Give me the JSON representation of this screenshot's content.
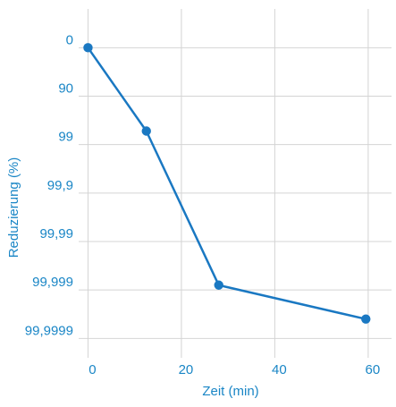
{
  "chart_data": {
    "type": "line",
    "xlabel": "Zeit (min)",
    "ylabel": "Reduzierung (%)",
    "xlim": [
      -2,
      65
    ],
    "x_ticks": [
      0,
      20,
      40,
      60
    ],
    "x_tick_labels": [
      "0",
      "20",
      "40",
      "60"
    ],
    "y_ticks": [
      0,
      1,
      2,
      3,
      4,
      5,
      6
    ],
    "y_tick_labels": [
      "0",
      "90",
      "99",
      "99,9",
      "99,99",
      "99,999",
      "99,9999"
    ],
    "y_scale": "log-reduction",
    "ylim": [
      -0.8,
      6.4
    ],
    "grid": true,
    "legend": "none",
    "colors": {
      "line": "#1a78c2",
      "text": "#1a86c6",
      "grid": "#d4d4d4"
    },
    "series": [
      {
        "x": [
          0,
          12.5,
          28,
          59.5
        ],
        "y": [
          0,
          1.72,
          4.9,
          5.6
        ]
      }
    ]
  }
}
